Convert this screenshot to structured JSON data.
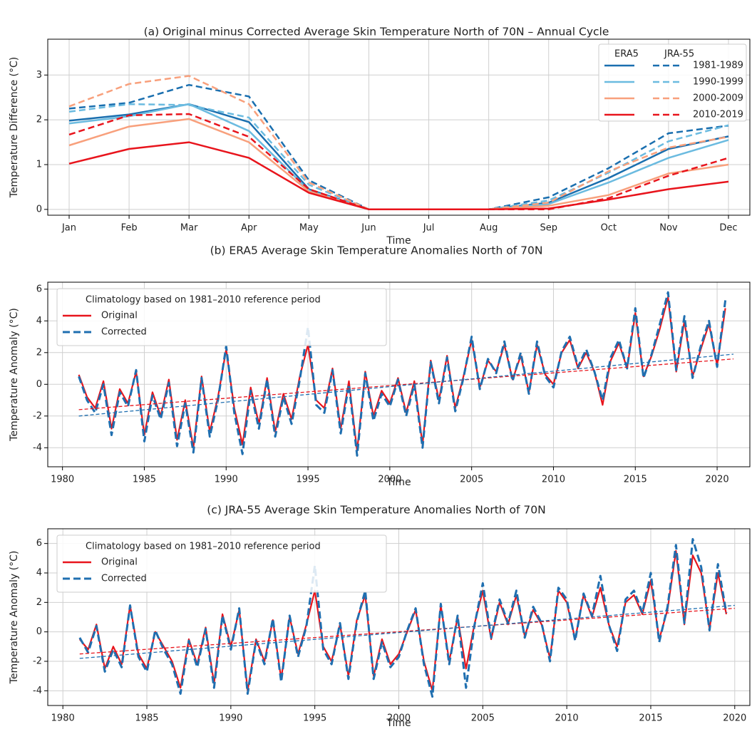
{
  "chart_data": [
    {
      "type": "line",
      "title": "(a) Original minus Corrected Average Skin Temperature North of 70N  –  Annual Cycle",
      "xlabel": "Time",
      "ylabel": "Temperature Difference (°C)",
      "categories": [
        "Jan",
        "Feb",
        "Mar",
        "Apr",
        "May",
        "Jun",
        "Jul",
        "Aug",
        "Sep",
        "Oct",
        "Nov",
        "Dec"
      ],
      "ylim": [
        -0.13,
        3.8
      ],
      "yticks": [
        0,
        1,
        2,
        3
      ],
      "grid": true,
      "legend": "upper right",
      "datasets": [
        {
          "name": "ERA5",
          "dash": false
        },
        {
          "name": "JRA-55",
          "dash": true
        }
      ],
      "series": [
        {
          "name": "1981-1989",
          "color": "#1a6faf",
          "values": [
            [
              1.98,
              2.12,
              2.35,
              1.95,
              0.45,
              0,
              0,
              0,
              0.15,
              0.7,
              1.35,
              1.63
            ],
            [
              2.25,
              2.38,
              2.78,
              2.52,
              0.65,
              0,
              0,
              0,
              0.27,
              0.92,
              1.7,
              1.87
            ]
          ]
        },
        {
          "name": "1990-1999",
          "color": "#6bbbe0",
          "values": [
            [
              1.92,
              2.08,
              2.35,
              1.75,
              0.42,
              0,
              0,
              0,
              0.12,
              0.6,
              1.15,
              1.55
            ],
            [
              2.18,
              2.35,
              2.33,
              2.05,
              0.55,
              0,
              0,
              0,
              0.2,
              0.82,
              1.52,
              1.88
            ]
          ]
        },
        {
          "name": "2000-2009",
          "color": "#f8a07c",
          "values": [
            [
              1.43,
              1.85,
              2.02,
              1.5,
              0.4,
              0,
              0,
              0,
              0.08,
              0.32,
              0.8,
              1.0
            ],
            [
              2.3,
              2.8,
              2.98,
              2.35,
              0.6,
              0,
              0,
              0,
              0.15,
              0.85,
              1.38,
              1.62
            ]
          ]
        },
        {
          "name": "2010-2019",
          "color": "#e8141c",
          "values": [
            [
              1.02,
              1.35,
              1.5,
              1.15,
              0.37,
              0,
              0,
              0,
              0.02,
              0.22,
              0.45,
              0.62
            ],
            [
              1.67,
              2.1,
              2.13,
              1.62,
              0.45,
              0,
              0,
              0,
              0.0,
              0.25,
              0.75,
              1.15
            ]
          ]
        }
      ]
    },
    {
      "type": "line",
      "title": "(b) ERA5 Average Skin Temperature Anomalies North of 70N",
      "xlabel": "Time",
      "ylabel": "Temperature Anomaly (°C)",
      "xlim": [
        1979.1,
        2022
      ],
      "xticks": [
        1980,
        1985,
        1990,
        1995,
        2000,
        2005,
        2010,
        2015,
        2020
      ],
      "ylim": [
        -5.2,
        6.44
      ],
      "yticks": [
        -4,
        -2,
        0,
        2,
        4,
        6
      ],
      "grid": true,
      "legend": "upper left",
      "legend_title": "Climatology based on 1981–2010 reference period",
      "x": [
        1981,
        1981.5,
        1982,
        1982.5,
        1983,
        1983.5,
        1984,
        1984.5,
        1985,
        1985.5,
        1986,
        1986.5,
        1987,
        1987.5,
        1988,
        1988.5,
        1989,
        1989.5,
        1990,
        1990.5,
        1991,
        1991.5,
        1992,
        1992.5,
        1993,
        1993.5,
        1994,
        1994.5,
        1995,
        1995.5,
        1996,
        1996.5,
        1997,
        1997.5,
        1998,
        1998.5,
        1999,
        1999.5,
        2000,
        2000.5,
        2001,
        2001.5,
        2002,
        2002.5,
        2003,
        2003.5,
        2004,
        2004.5,
        2005,
        2005.5,
        2006,
        2006.5,
        2007,
        2007.5,
        2008,
        2008.5,
        2009,
        2009.5,
        2010,
        2010.5,
        2011,
        2011.5,
        2012,
        2012.5,
        2013,
        2013.5,
        2014,
        2014.5,
        2015,
        2015.5,
        2016,
        2016.5,
        2017,
        2017.5,
        2018,
        2018.5,
        2019,
        2019.5,
        2020,
        2020.5
      ],
      "series": [
        {
          "name": "Original",
          "color": "#e8141c",
          "dash": false,
          "values": [
            0.6,
            -0.8,
            -1.5,
            0.2,
            -2.8,
            -0.3,
            -1.2,
            0.8,
            -3.2,
            -0.5,
            -2.0,
            0.3,
            -3.5,
            -1.0,
            -4.0,
            0.5,
            -3.0,
            -0.8,
            2.2,
            -1.5,
            -3.8,
            -0.2,
            -2.5,
            0.4,
            -3.0,
            -0.6,
            -2.2,
            0.5,
            2.5,
            -1.0,
            -1.5,
            1.0,
            -2.8,
            0.2,
            -4.2,
            0.8,
            -2.0,
            -0.4,
            -1.2,
            0.4,
            -1.8,
            0.2,
            -3.8,
            1.5,
            -1.0,
            1.8,
            -1.5,
            0.5,
            2.8,
            -0.2,
            1.5,
            0.8,
            2.5,
            0.3,
            1.8,
            -0.5,
            2.5,
            0.6,
            0.0,
            2.0,
            2.8,
            1.0,
            2.0,
            0.8,
            -1.3,
            1.5,
            2.6,
            1.0,
            4.5,
            0.5,
            1.8,
            3.5,
            5.5,
            0.8,
            4.0,
            0.5,
            2.2,
            3.8,
            1.2,
            4.8
          ]
        },
        {
          "name": "Corrected",
          "color": "#1f6fb0",
          "dash": true,
          "values": [
            0.5,
            -1.0,
            -1.8,
            0.0,
            -3.2,
            -0.5,
            -1.4,
            0.9,
            -3.6,
            -0.7,
            -2.2,
            0.1,
            -3.9,
            -1.2,
            -4.3,
            0.4,
            -3.3,
            -1.0,
            2.4,
            -1.8,
            -4.4,
            -0.4,
            -2.8,
            0.3,
            -3.3,
            -0.8,
            -2.5,
            0.3,
            3.6,
            -1.3,
            -1.8,
            0.9,
            -3.1,
            0.0,
            -4.5,
            0.7,
            -2.3,
            -0.6,
            -1.4,
            0.3,
            -2.0,
            0.0,
            -4.0,
            1.4,
            -1.2,
            1.7,
            -1.7,
            0.4,
            3.0,
            -0.3,
            1.6,
            0.7,
            2.7,
            0.2,
            2.0,
            -0.6,
            2.7,
            0.5,
            -0.2,
            2.1,
            3.0,
            1.1,
            2.2,
            0.8,
            -1.0,
            1.7,
            2.8,
            1.0,
            4.8,
            0.4,
            1.9,
            3.8,
            5.8,
            0.9,
            4.3,
            0.4,
            2.4,
            4.0,
            1.1,
            5.3
          ]
        }
      ],
      "trends": [
        {
          "color": "#e8141c",
          "x": [
            1981,
            2021
          ],
          "values": [
            -1.6,
            1.6
          ]
        },
        {
          "color": "#1f6fb0",
          "x": [
            1981,
            2021
          ],
          "values": [
            -2.0,
            1.9
          ]
        }
      ]
    },
    {
      "type": "line",
      "title": "(c) JRA-55 Average Skin Temperature Anomalies North of 70N",
      "xlabel": "Time",
      "ylabel": "Temperature Anomaly (°C)",
      "xlim": [
        1979.1,
        2020.9
      ],
      "xticks": [
        1980,
        1985,
        1990,
        1995,
        2000,
        2005,
        2010,
        2015,
        2020
      ],
      "ylim": [
        -5.0,
        7.0
      ],
      "yticks": [
        -4,
        -2,
        0,
        2,
        4,
        6
      ],
      "grid": true,
      "legend": "upper left",
      "legend_title": "Climatology based on 1981–2010 reference period",
      "x": [
        1981,
        1981.5,
        1982,
        1982.5,
        1983,
        1983.5,
        1984,
        1984.5,
        1985,
        1985.5,
        1986,
        1986.5,
        1987,
        1987.5,
        1988,
        1988.5,
        1989,
        1989.5,
        1990,
        1990.5,
        1991,
        1991.5,
        1992,
        1992.5,
        1993,
        1993.5,
        1994,
        1994.5,
        1995,
        1995.5,
        1996,
        1996.5,
        1997,
        1997.5,
        1998,
        1998.5,
        1999,
        1999.5,
        2000,
        2000.5,
        2001,
        2001.5,
        2002,
        2002.5,
        2003,
        2003.5,
        2004,
        2004.5,
        2005,
        2005.5,
        2006,
        2006.5,
        2007,
        2007.5,
        2008,
        2008.5,
        2009,
        2009.5,
        2010,
        2010.5,
        2011,
        2011.5,
        2012,
        2012.5,
        2013,
        2013.5,
        2014,
        2014.5,
        2015,
        2015.5,
        2016,
        2016.5,
        2017,
        2017.5,
        2018,
        2018.5,
        2019,
        2019.5
      ],
      "series": [
        {
          "name": "Original",
          "color": "#e8141c",
          "dash": false,
          "values": [
            -0.5,
            -1.2,
            0.5,
            -2.5,
            -1.0,
            -2.2,
            1.8,
            -1.5,
            -2.5,
            0.0,
            -1.0,
            -2.0,
            -3.8,
            -0.5,
            -2.2,
            0.3,
            -3.5,
            1.2,
            -1.0,
            1.5,
            -4.0,
            -0.5,
            -2.0,
            0.8,
            -3.2,
            1.0,
            -1.5,
            0.5,
            2.8,
            -1.0,
            -2.0,
            0.5,
            -3.0,
            0.8,
            2.5,
            -3.0,
            -0.5,
            -2.2,
            -1.5,
            0.0,
            1.5,
            -2.0,
            -4.0,
            1.8,
            -2.0,
            1.0,
            -2.5,
            0.5,
            2.8,
            -0.5,
            2.0,
            0.5,
            2.5,
            -0.3,
            1.5,
            0.5,
            -1.8,
            2.8,
            2.0,
            -0.5,
            2.5,
            1.0,
            3.0,
            0.5,
            -1.0,
            2.0,
            2.5,
            1.2,
            3.5,
            -0.5,
            1.5,
            5.5,
            0.5,
            5.2,
            4.0,
            0.2,
            4.0,
            1.2
          ]
        },
        {
          "name": "Corrected",
          "color": "#1f6fb0",
          "dash": true,
          "values": [
            -0.4,
            -1.4,
            0.4,
            -2.7,
            -1.2,
            -2.4,
            1.8,
            -1.7,
            -2.7,
            0.1,
            -1.2,
            -2.2,
            -4.2,
            -0.6,
            -2.4,
            0.2,
            -3.8,
            1.1,
            -1.2,
            1.6,
            -4.2,
            -0.6,
            -2.2,
            0.9,
            -3.4,
            1.1,
            -1.7,
            0.4,
            4.5,
            -1.2,
            -2.2,
            0.6,
            -3.2,
            0.7,
            2.8,
            -3.2,
            -0.7,
            -2.4,
            -1.7,
            0.1,
            1.6,
            -2.2,
            -4.4,
            1.9,
            -2.2,
            1.1,
            -3.8,
            0.4,
            3.3,
            -0.4,
            2.2,
            0.6,
            2.8,
            -0.4,
            1.7,
            0.6,
            -2.0,
            3.0,
            2.2,
            -0.6,
            2.6,
            1.1,
            3.8,
            0.5,
            -1.3,
            2.2,
            2.8,
            1.3,
            4.0,
            -0.7,
            1.7,
            5.9,
            0.6,
            6.3,
            4.4,
            0.1,
            4.6,
            1.3
          ]
        }
      ],
      "trends": [
        {
          "color": "#e8141c",
          "x": [
            1981,
            2020
          ],
          "values": [
            -1.5,
            1.6
          ]
        },
        {
          "color": "#1f6fb0",
          "x": [
            1981,
            2020
          ],
          "values": [
            -1.8,
            1.8
          ]
        }
      ]
    }
  ]
}
